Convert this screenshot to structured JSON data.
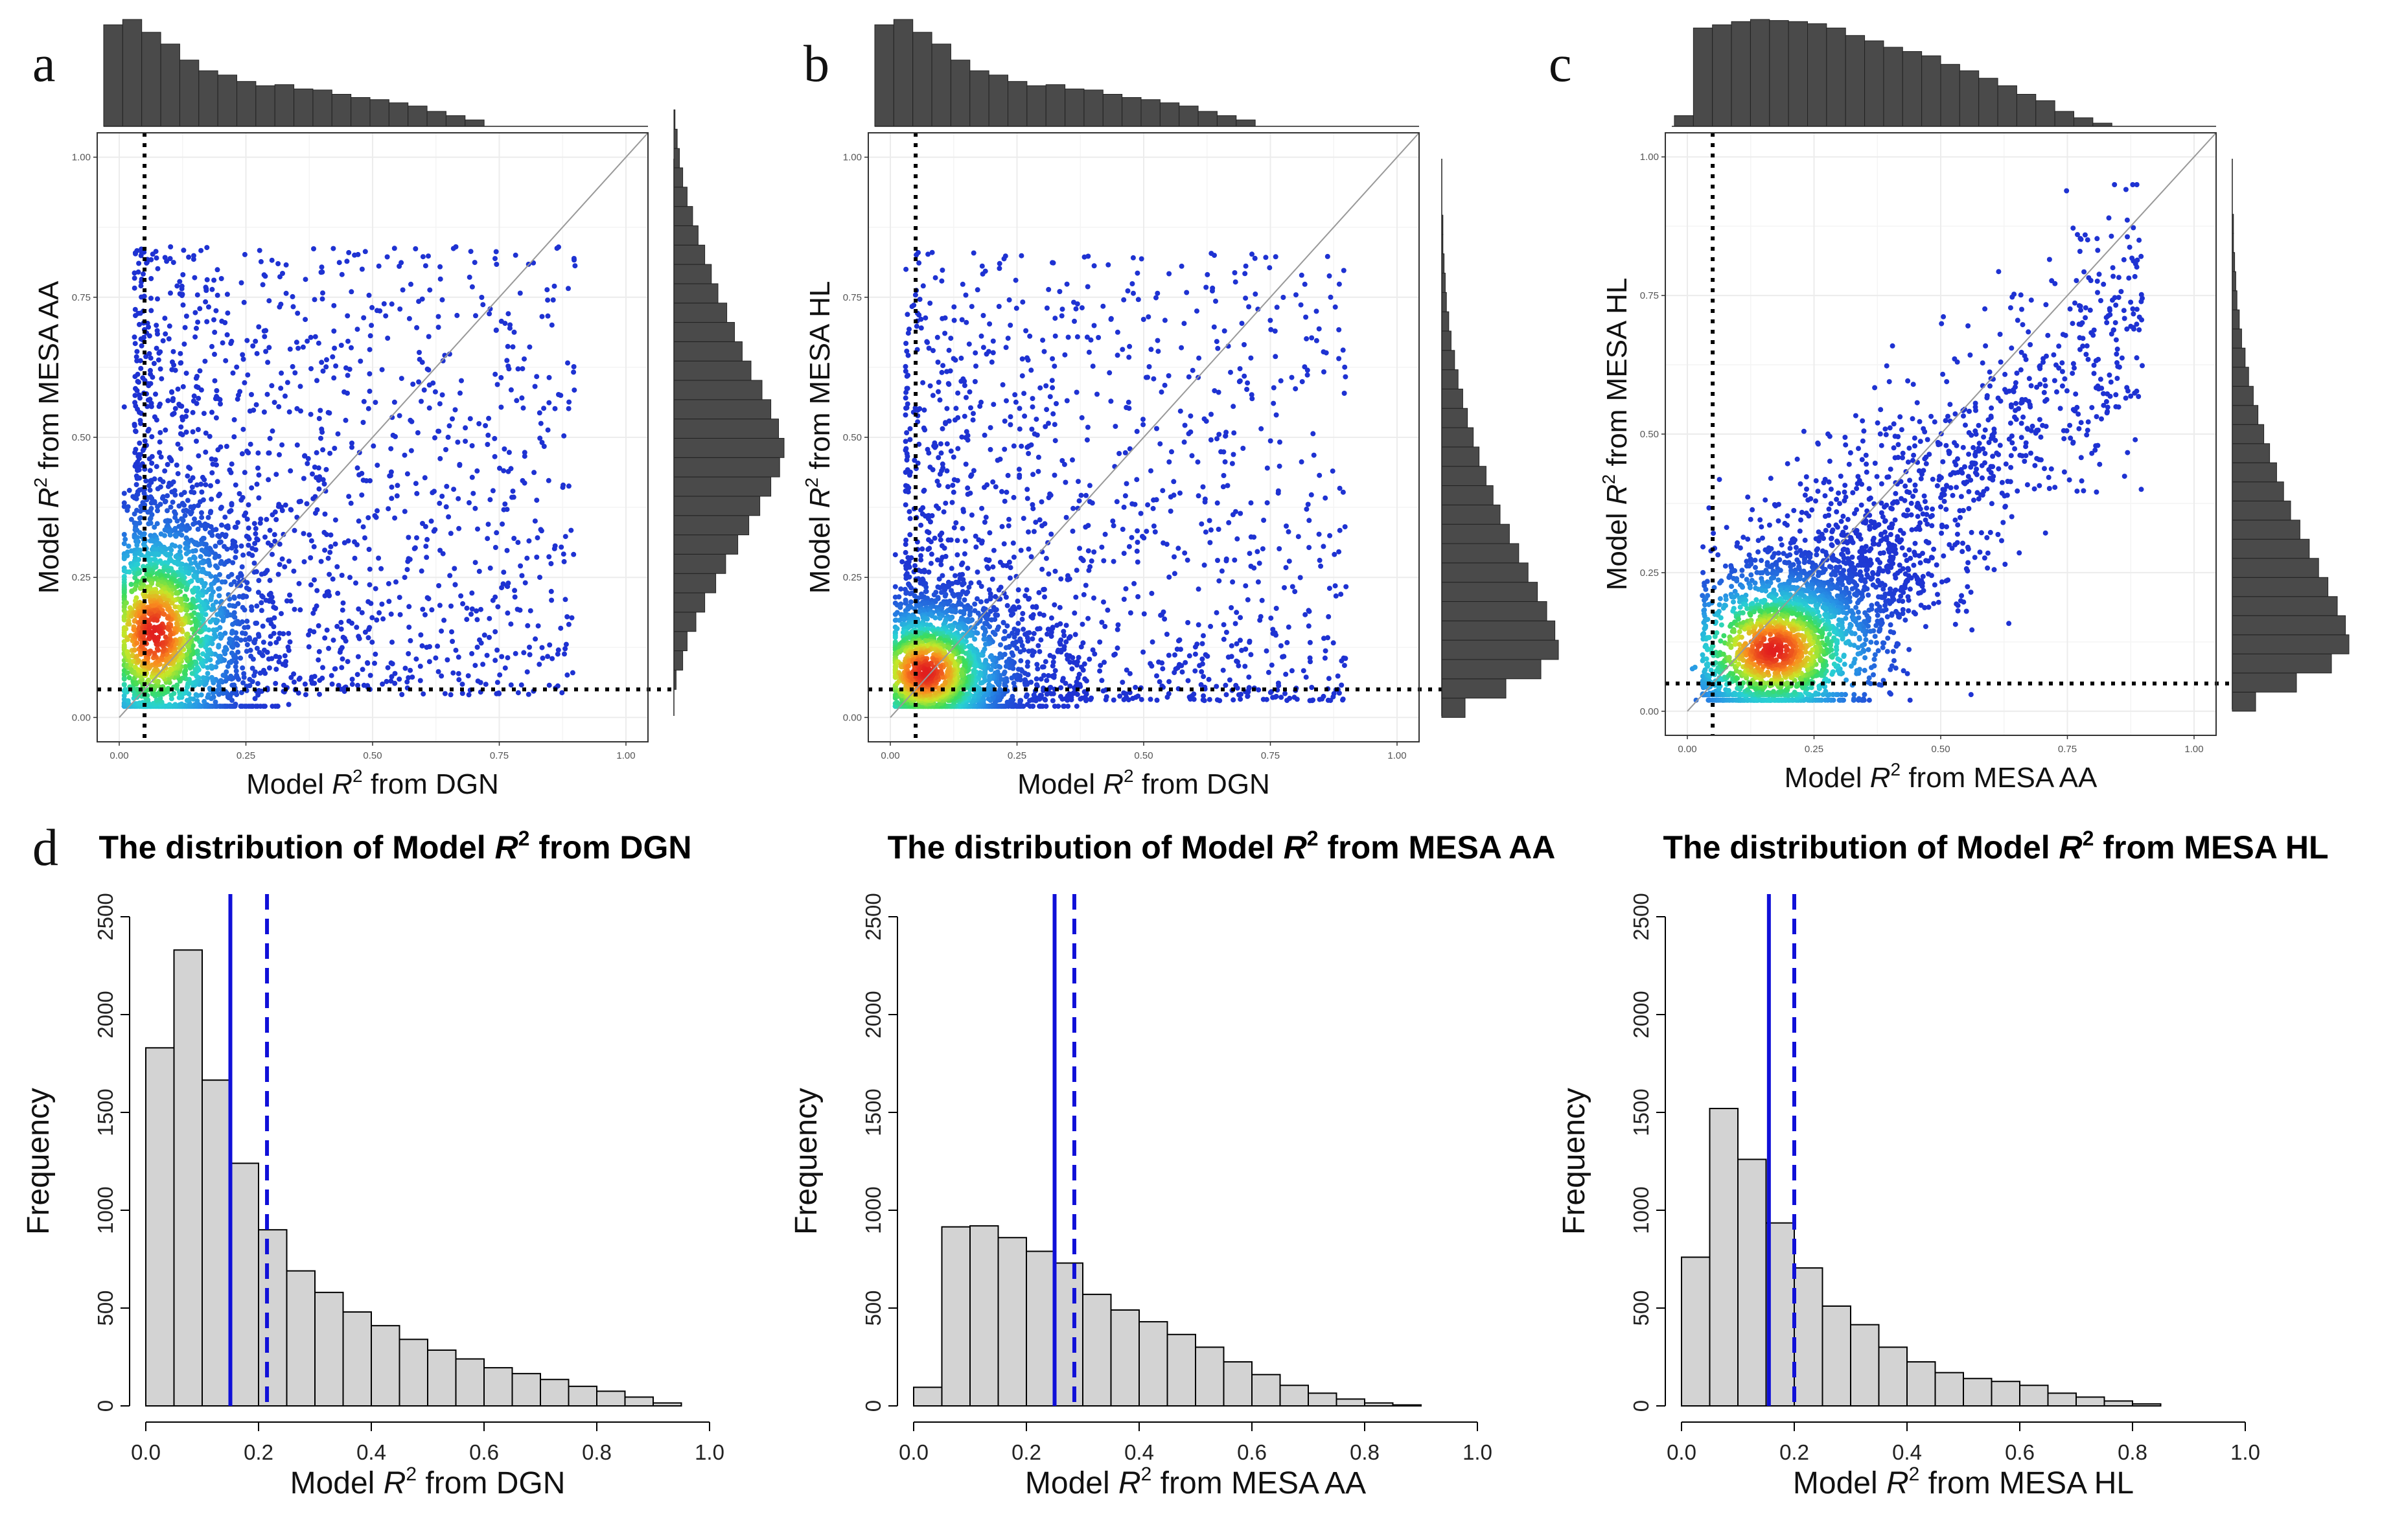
{
  "figure": {
    "panels": [
      {
        "letter": "a",
        "xlabel_pre": "Model ",
        "xlabel_r": "R",
        "xlabel_sup": "2",
        "xlabel_post": " from DGN",
        "ylabel_pre": "Model ",
        "ylabel_r": "R",
        "ylabel_sup": "2",
        "ylabel_post": " from MESA AA"
      },
      {
        "letter": "b",
        "xlabel_pre": "Model ",
        "xlabel_r": "R",
        "xlabel_sup": "2",
        "xlabel_post": " from DGN",
        "ylabel_pre": "Model ",
        "ylabel_r": "R",
        "ylabel_sup": "2",
        "ylabel_post": " from MESA HL"
      },
      {
        "letter": "c",
        "xlabel_pre": "Model ",
        "xlabel_r": "R",
        "xlabel_sup": "2",
        "xlabel_post": " from MESA AA",
        "ylabel_pre": "Model ",
        "ylabel_r": "R",
        "ylabel_sup": "2",
        "ylabel_post": " from MESA HL"
      }
    ],
    "panel_d_letter": "d",
    "histograms": [
      {
        "title_pre": "The distribution of Model ",
        "title_r": "R",
        "title_sup": "2",
        "title_post": " from DGN",
        "xlabel_pre": "Model ",
        "xlabel_r": "R",
        "xlabel_sup": "2",
        "xlabel_post": " from DGN",
        "ylabel": "Frequency"
      },
      {
        "title_pre": "The distribution of Model ",
        "title_r": "R",
        "title_sup": "2",
        "title_post": " from MESA AA",
        "xlabel_pre": "Model ",
        "xlabel_r": "R",
        "xlabel_sup": "2",
        "xlabel_post": " from MESA AA",
        "ylabel": "Frequency"
      },
      {
        "title_pre": "The distribution of Model ",
        "title_r": "R",
        "title_sup": "2",
        "title_post": " from MESA HL",
        "xlabel_pre": "Model ",
        "xlabel_r": "R",
        "xlabel_sup": "2",
        "xlabel_post": " from MESA HL",
        "ylabel": "Frequency"
      }
    ]
  },
  "chart_data": [
    {
      "type": "scatter",
      "panel": "a",
      "xlabel": "Model R2 from DGN",
      "ylabel": "Model R2 from MESA AA",
      "xlim": [
        0,
        1
      ],
      "ylim": [
        0,
        1
      ],
      "x_ticks": [
        "0.00",
        "0.25",
        "0.50",
        "0.75",
        "1.00"
      ],
      "y_ticks": [
        "0.00",
        "0.25",
        "0.50",
        "0.75",
        "1.00"
      ],
      "threshold_x": 0.05,
      "threshold_y": 0.05,
      "identity_line": true,
      "density_center": [
        0.07,
        0.15
      ],
      "density_spread": [
        0.1,
        0.13
      ],
      "n_points": 3200,
      "top_marginal": [
        95,
        100,
        88,
        77,
        62,
        52,
        48,
        42,
        38,
        39,
        35,
        34,
        30,
        27,
        25,
        22,
        19,
        14,
        10,
        6
      ],
      "right_marginal": [
        2,
        8,
        12,
        20,
        28,
        38,
        47,
        58,
        68,
        78,
        88,
        96,
        100,
        95,
        88,
        80,
        70,
        62,
        55,
        48,
        40,
        34,
        28,
        22,
        17,
        12,
        8,
        5,
        3,
        1
      ]
    },
    {
      "type": "scatter",
      "panel": "b",
      "xlabel": "Model R2 from DGN",
      "ylabel": "Model R2 from MESA HL",
      "xlim": [
        0,
        1
      ],
      "ylim": [
        0,
        1
      ],
      "x_ticks": [
        "0.00",
        "0.25",
        "0.50",
        "0.75",
        "1.00"
      ],
      "y_ticks": [
        "0.00",
        "0.25",
        "0.50",
        "0.75",
        "1.00"
      ],
      "threshold_x": 0.05,
      "threshold_y": 0.05,
      "identity_line": true,
      "density_center": [
        0.07,
        0.08
      ],
      "density_spread": [
        0.1,
        0.08
      ],
      "n_points": 3200,
      "top_marginal": [
        95,
        100,
        88,
        77,
        62,
        52,
        48,
        42,
        38,
        39,
        35,
        34,
        30,
        27,
        25,
        22,
        19,
        14,
        10,
        6
      ],
      "right_marginal": [
        20,
        55,
        85,
        100,
        97,
        90,
        82,
        74,
        66,
        58,
        50,
        44,
        38,
        32,
        27,
        22,
        18,
        14,
        11,
        8,
        6,
        4,
        3,
        2,
        1,
        1
      ]
    },
    {
      "type": "scatter",
      "panel": "c",
      "xlabel": "Model R2 from MESA AA",
      "ylabel": "Model R2 from MESA HL",
      "xlim": [
        0,
        1
      ],
      "ylim": [
        0,
        1
      ],
      "x_ticks": [
        "0.00",
        "0.25",
        "0.50",
        "0.75",
        "1.00"
      ],
      "y_ticks": [
        "0.00",
        "0.25",
        "0.50",
        "0.75",
        "1.00"
      ],
      "threshold_x": 0.05,
      "threshold_y": 0.05,
      "identity_line": true,
      "density_center": [
        0.17,
        0.11
      ],
      "density_spread": [
        0.13,
        0.09
      ],
      "n_points": 3200,
      "top_marginal": [
        10,
        92,
        95,
        98,
        100,
        99,
        98,
        96,
        92,
        85,
        80,
        74,
        70,
        66,
        58,
        52,
        45,
        38,
        30,
        24,
        14,
        8,
        3
      ],
      "right_marginal": [
        20,
        55,
        85,
        100,
        97,
        90,
        82,
        74,
        66,
        58,
        50,
        44,
        38,
        32,
        27,
        22,
        18,
        14,
        11,
        8,
        6,
        4,
        3,
        2,
        1,
        1
      ]
    },
    {
      "type": "bar",
      "panel": "d1",
      "title": "The distribution of Model R2 from DGN",
      "xlabel": "Model R2 from DGN",
      "ylabel": "Frequency",
      "bin_width": 0.05,
      "bin_start": 0.0,
      "values": [
        1830,
        2330,
        1665,
        1240,
        900,
        690,
        580,
        480,
        410,
        340,
        285,
        240,
        195,
        165,
        135,
        100,
        75,
        45,
        15
      ],
      "xlim": [
        0,
        1
      ],
      "ylim": [
        0,
        2500
      ],
      "x_ticks": [
        "0.0",
        "0.2",
        "0.4",
        "0.6",
        "0.8",
        "1.0"
      ],
      "y_ticks": [
        "0",
        "500",
        "1000",
        "1500",
        "2000",
        "2500"
      ],
      "median": 0.15,
      "mean": 0.215
    },
    {
      "type": "bar",
      "panel": "d2",
      "title": "The distribution of Model R2 from MESA AA",
      "xlabel": "Model R2 from MESA AA",
      "ylabel": "Frequency",
      "bin_width": 0.05,
      "bin_start": 0.0,
      "values": [
        95,
        915,
        920,
        860,
        790,
        730,
        570,
        490,
        430,
        365,
        300,
        225,
        160,
        105,
        65,
        35,
        15,
        5
      ],
      "xlim": [
        0,
        1
      ],
      "ylim": [
        0,
        2500
      ],
      "x_ticks": [
        "0.0",
        "0.2",
        "0.4",
        "0.6",
        "0.8",
        "1.0"
      ],
      "y_ticks": [
        "0",
        "500",
        "1000",
        "1500",
        "2000",
        "2500"
      ],
      "median": 0.25,
      "mean": 0.285
    },
    {
      "type": "bar",
      "panel": "d3",
      "title": "The distribution of Model R2 from MESA HL",
      "xlabel": "Model R2 from MESA HL",
      "ylabel": "Frequency",
      "bin_width": 0.05,
      "bin_start": 0.0,
      "values": [
        760,
        1520,
        1260,
        935,
        705,
        510,
        415,
        300,
        225,
        170,
        140,
        125,
        105,
        65,
        45,
        25,
        10
      ],
      "xlim": [
        0,
        1
      ],
      "ylim": [
        0,
        2500
      ],
      "x_ticks": [
        "0.0",
        "0.2",
        "0.4",
        "0.6",
        "0.8",
        "1.0"
      ],
      "y_ticks": [
        "0",
        "500",
        "1000",
        "1500",
        "2000",
        "2500"
      ],
      "median": 0.155,
      "mean": 0.2
    }
  ],
  "colors": {
    "marginal_fill": "#4a4a4a",
    "hist_fill": "#d3d3d3",
    "hist_stroke": "#000000",
    "median_line": "#1010d8",
    "mean_line": "#1010d8",
    "threshold_line": "#000000",
    "identity_line": "#999999",
    "panel_border": "#333333"
  }
}
